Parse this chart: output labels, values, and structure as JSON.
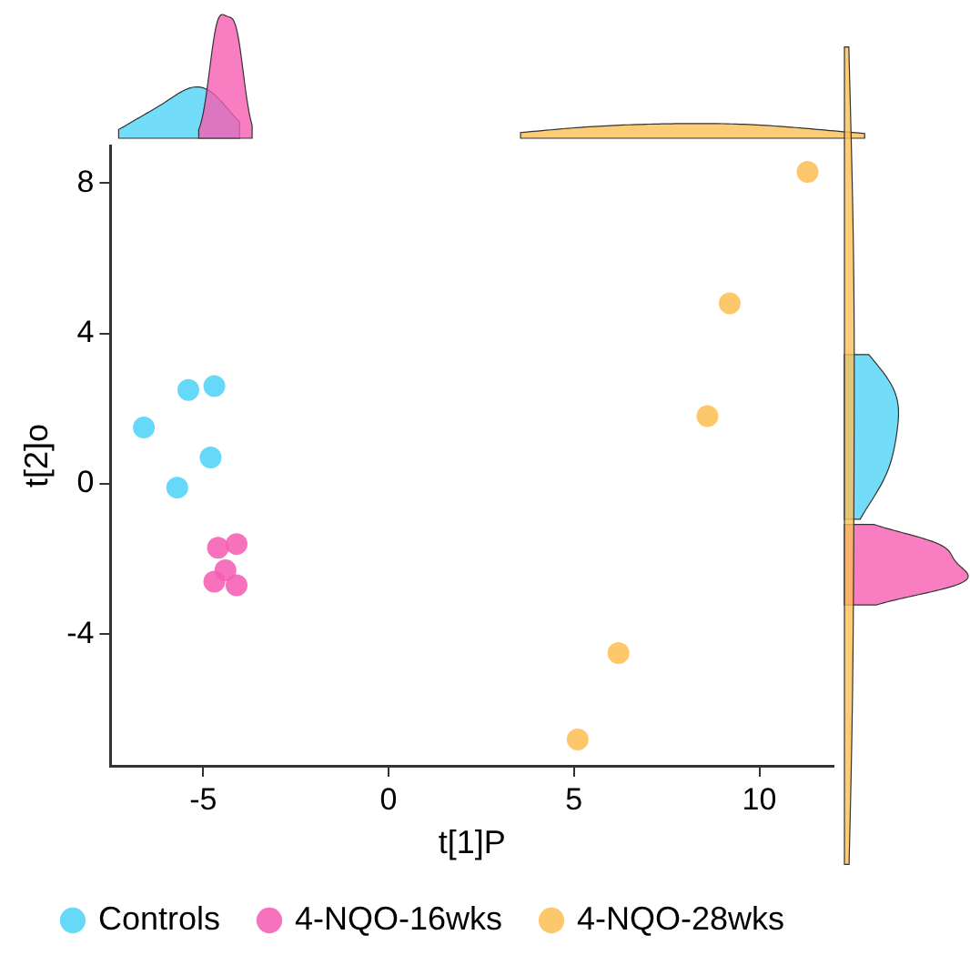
{
  "chart_data": {
    "type": "scatter",
    "xlabel": "t[1]P",
    "ylabel": "t[2]o",
    "xlim": [
      -7.5,
      12
    ],
    "ylim": [
      -7.5,
      9
    ],
    "xticks": [
      -5,
      0,
      5,
      10
    ],
    "yticks": [
      -4,
      0,
      4,
      8
    ],
    "grid": false,
    "legend": "bottom",
    "marker": "circle",
    "series": [
      {
        "name": "Controls",
        "color": "#4fd3f8",
        "x": [
          -6.6,
          -5.4,
          -4.7,
          -4.8,
          -5.7
        ],
        "values": [
          1.5,
          2.5,
          2.6,
          0.7,
          -0.1
        ]
      },
      {
        "name": "4-NQO-16wks",
        "color": "#f65cb2",
        "x": [
          -4.1,
          -4.6,
          -4.4,
          -4.7,
          -4.1
        ],
        "values": [
          -1.6,
          -1.7,
          -2.3,
          -2.6,
          -2.7
        ]
      },
      {
        "name": "4-NQO-28wks",
        "color": "#fdbf55",
        "x": [
          11.3,
          9.2,
          8.6,
          6.2,
          5.1
        ],
        "values": [
          8.3,
          4.8,
          1.8,
          -4.5,
          -6.8
        ]
      }
    ]
  }
}
